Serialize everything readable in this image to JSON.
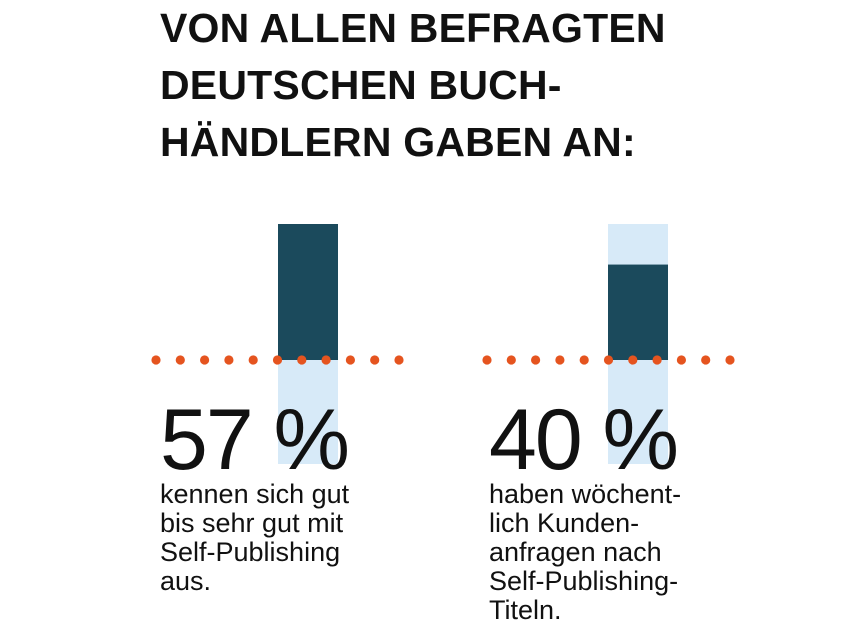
{
  "title": {
    "lines": [
      "VON ALLEN BEFRAGTEN",
      "DEUTSCHEN BUCH-",
      "HÄNDLERN GABEN AN:"
    ]
  },
  "colors": {
    "bar_fill": "#1b4a5c",
    "bar_remainder": "#d7eaf8",
    "dots": "#e5541f",
    "text": "#111111"
  },
  "chart_data": {
    "type": "bar",
    "categories": [
      "kennen sich gut bis sehr gut mit Self-Publishing aus.",
      "haben wöchentlich Kundenanfragen nach Self-Publishing-Titeln."
    ],
    "values": [
      57,
      40
    ],
    "unit": "%",
    "ylim": [
      0,
      100
    ],
    "stats": [
      {
        "value_label": "57 %",
        "description_lines": [
          "kennen sich gut",
          "bis sehr gut mit",
          "Self-Publishing",
          "aus."
        ]
      },
      {
        "value_label": "40 %",
        "description_lines": [
          "haben wöchent-",
          "lich Kunden-",
          "anfragen nach",
          "Self-Publishing-",
          "Titeln."
        ]
      }
    ]
  }
}
